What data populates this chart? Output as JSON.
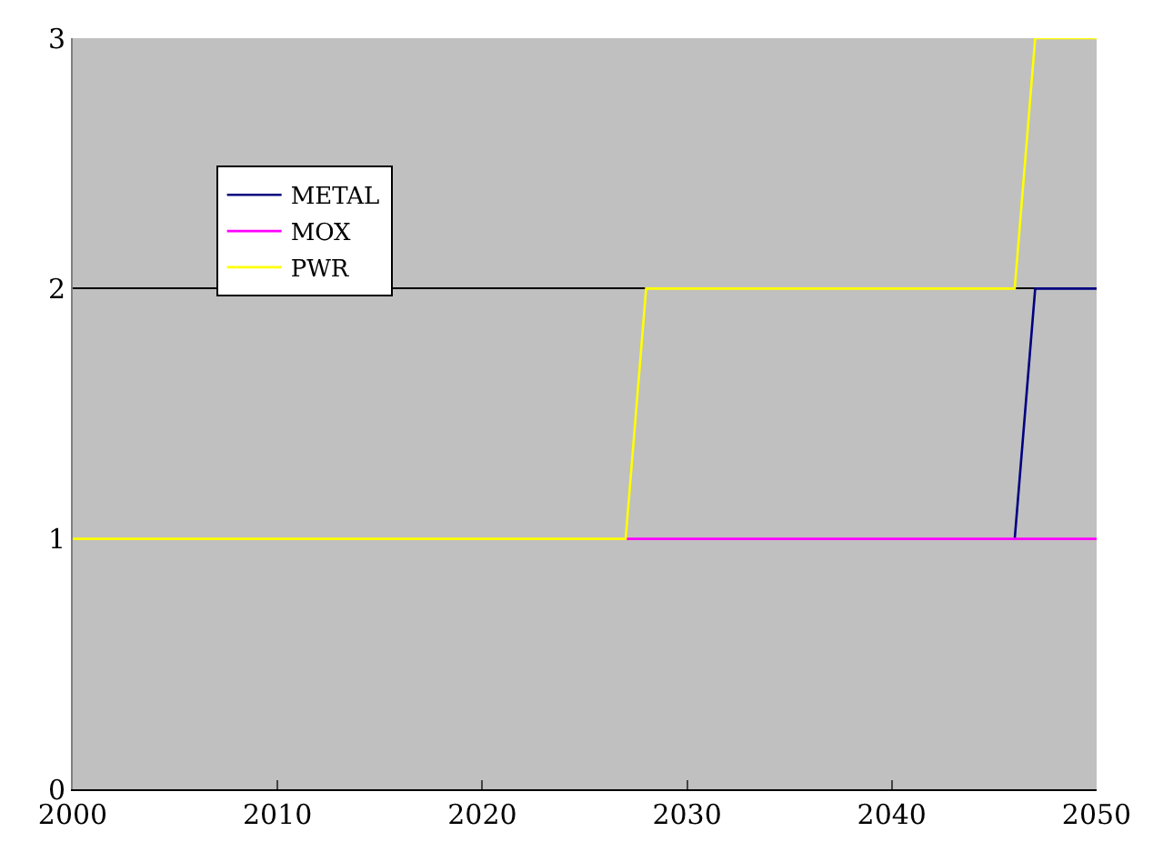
{
  "chart_data": {
    "type": "line",
    "x": [
      2000,
      2001,
      2002,
      2003,
      2004,
      2005,
      2006,
      2007,
      2008,
      2009,
      2010,
      2011,
      2012,
      2013,
      2014,
      2015,
      2016,
      2017,
      2018,
      2019,
      2020,
      2021,
      2022,
      2023,
      2024,
      2025,
      2026,
      2027,
      2028,
      2029,
      2030,
      2031,
      2032,
      2033,
      2034,
      2035,
      2036,
      2037,
      2038,
      2039,
      2040,
      2041,
      2042,
      2043,
      2044,
      2045,
      2046,
      2047,
      2048,
      2049,
      2050
    ],
    "series": [
      {
        "name": "METAL",
        "color": "#000080",
        "values": [
          null,
          null,
          null,
          null,
          null,
          null,
          null,
          null,
          null,
          null,
          null,
          null,
          null,
          null,
          null,
          null,
          null,
          null,
          null,
          null,
          null,
          null,
          null,
          null,
          null,
          null,
          null,
          null,
          null,
          null,
          null,
          null,
          null,
          null,
          null,
          null,
          null,
          null,
          null,
          null,
          null,
          null,
          null,
          null,
          null,
          null,
          1,
          2,
          2,
          2,
          2
        ]
      },
      {
        "name": "MOX",
        "color": "#ff00ff",
        "values": [
          null,
          null,
          null,
          null,
          null,
          null,
          null,
          null,
          null,
          null,
          null,
          null,
          null,
          null,
          null,
          null,
          null,
          null,
          null,
          null,
          null,
          null,
          null,
          null,
          null,
          null,
          null,
          1,
          1,
          1,
          1,
          1,
          1,
          1,
          1,
          1,
          1,
          1,
          1,
          1,
          1,
          1,
          1,
          1,
          1,
          1,
          1,
          1,
          1,
          1,
          1
        ]
      },
      {
        "name": "PWR",
        "color": "#ffff00",
        "values": [
          1,
          1,
          1,
          1,
          1,
          1,
          1,
          1,
          1,
          1,
          1,
          1,
          1,
          1,
          1,
          1,
          1,
          1,
          1,
          1,
          1,
          1,
          1,
          1,
          1,
          1,
          1,
          1,
          2,
          2,
          2,
          2,
          2,
          2,
          2,
          2,
          2,
          2,
          2,
          2,
          2,
          2,
          2,
          2,
          2,
          2,
          2,
          3,
          3,
          3,
          3
        ]
      }
    ],
    "xlim": [
      2000,
      2050
    ],
    "xticks": [
      2000,
      2010,
      2020,
      2030,
      2040,
      2050
    ],
    "ylim": [
      0,
      3
    ],
    "yticks": [
      0,
      1,
      2,
      3
    ],
    "grid": "y",
    "legend": "top left",
    "marker": "none",
    "line_style": "solid"
  }
}
